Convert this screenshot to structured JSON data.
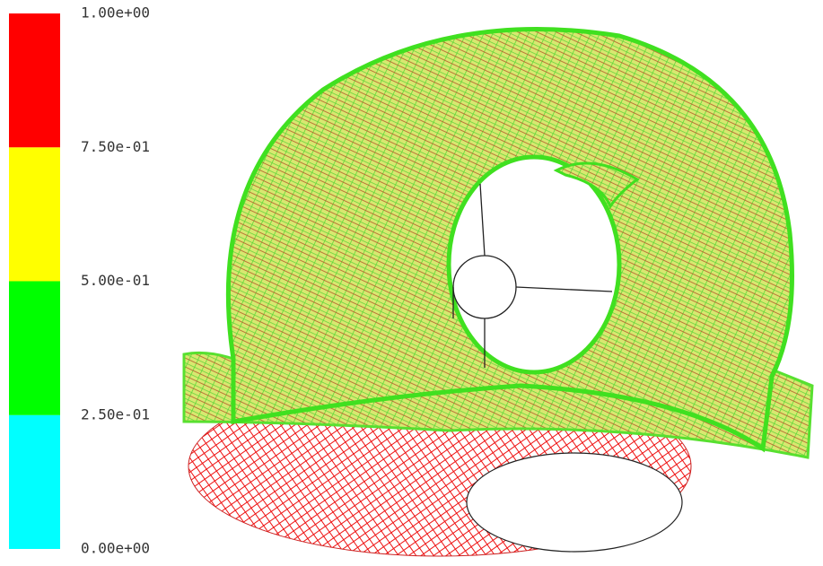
{
  "colorbar": {
    "levels": [
      {
        "value": 0,
        "label": "0.00e+00"
      },
      {
        "value": 0.25,
        "label": "2.50e-01"
      },
      {
        "value": 0.5,
        "label": "5.00e-01"
      },
      {
        "value": 0.75,
        "label": "7.50e-01"
      },
      {
        "value": 1,
        "label": "1.00e+00"
      }
    ],
    "colors": [
      "#00ffff",
      "#00ff00",
      "#ffff00",
      "#ff0000"
    ]
  }
}
